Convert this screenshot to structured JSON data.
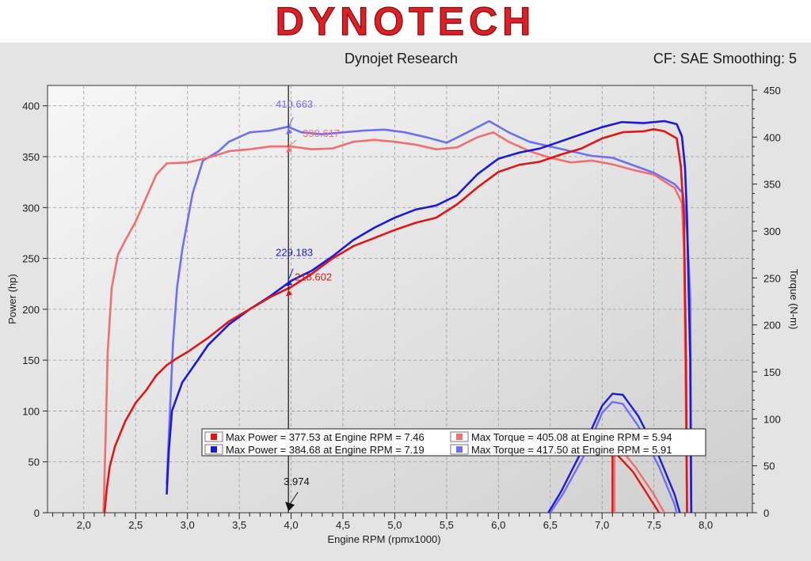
{
  "brand": {
    "logo_text": "DYNOTECH"
  },
  "header": {
    "title": "Dynojet Research",
    "correction": "CF: SAE Smoothing: 5"
  },
  "chart_data": {
    "type": "line",
    "xlabel": "Engine RPM (rpmx1000)",
    "ylabel_left": "Power (hp)",
    "ylabel_right": "Torque (N-m)",
    "xlim": [
      1.65,
      8.45
    ],
    "ylim_left": [
      0,
      420
    ],
    "ylim_right": [
      0,
      455
    ],
    "x_ticks": [
      2.0,
      2.5,
      3.0,
      3.5,
      4.0,
      4.5,
      5.0,
      5.5,
      6.0,
      6.5,
      7.0,
      7.5,
      8.0
    ],
    "x_tick_labels": [
      "2,0",
      "2,5",
      "3,0",
      "3,5",
      "4,0",
      "4,5",
      "5,0",
      "5,5",
      "6,0",
      "6,5",
      "7,0",
      "7,5",
      "8,0"
    ],
    "y_left_ticks": [
      0,
      50,
      100,
      150,
      200,
      250,
      300,
      350,
      400
    ],
    "y_right_ticks": [
      0,
      50,
      100,
      150,
      200,
      250,
      300,
      350,
      400,
      450
    ],
    "grid": true,
    "cursor": {
      "rpm": 3.974,
      "label": "3.974"
    },
    "colors": {
      "red_power": "#e01616",
      "red_torque": "#f07070",
      "blue_power": "#1a1add",
      "blue_torque": "#6f6ff2"
    },
    "series": [
      {
        "axis": "left",
        "color_key": "red_power",
        "points": [
          [
            2.2,
            0
          ],
          [
            2.22,
            22
          ],
          [
            2.25,
            45
          ],
          [
            2.3,
            65
          ],
          [
            2.4,
            90
          ],
          [
            2.5,
            108
          ],
          [
            2.6,
            120
          ],
          [
            2.7,
            135
          ],
          [
            2.8,
            145
          ],
          [
            2.9,
            152
          ],
          [
            3.0,
            158
          ],
          [
            3.2,
            172
          ],
          [
            3.4,
            188
          ],
          [
            3.6,
            200
          ],
          [
            3.8,
            212
          ],
          [
            4.0,
            222
          ],
          [
            4.2,
            235
          ],
          [
            4.4,
            250
          ],
          [
            4.6,
            262
          ],
          [
            4.8,
            270
          ],
          [
            5.0,
            278
          ],
          [
            5.2,
            285
          ],
          [
            5.4,
            290
          ],
          [
            5.6,
            303
          ],
          [
            5.8,
            320
          ],
          [
            6.0,
            335
          ],
          [
            6.2,
            342
          ],
          [
            6.4,
            345
          ],
          [
            6.6,
            352
          ],
          [
            6.8,
            358
          ],
          [
            7.0,
            368
          ],
          [
            7.2,
            374
          ],
          [
            7.4,
            375
          ],
          [
            7.5,
            377
          ],
          [
            7.6,
            375
          ],
          [
            7.72,
            368
          ],
          [
            7.76,
            340
          ],
          [
            7.79,
            290
          ],
          [
            7.81,
            150
          ],
          [
            7.82,
            0
          ]
        ]
      },
      {
        "axis": "right",
        "color_key": "red_torque",
        "points": [
          [
            2.19,
            0
          ],
          [
            2.21,
            80
          ],
          [
            2.23,
            170
          ],
          [
            2.27,
            240
          ],
          [
            2.33,
            275
          ],
          [
            2.4,
            290
          ],
          [
            2.5,
            310
          ],
          [
            2.6,
            335
          ],
          [
            2.7,
            360
          ],
          [
            2.8,
            372
          ],
          [
            3.0,
            373
          ],
          [
            3.2,
            378
          ],
          [
            3.4,
            385
          ],
          [
            3.6,
            387
          ],
          [
            3.8,
            390
          ],
          [
            4.0,
            390
          ],
          [
            4.2,
            387
          ],
          [
            4.4,
            388
          ],
          [
            4.6,
            395
          ],
          [
            4.8,
            397
          ],
          [
            5.0,
            395
          ],
          [
            5.2,
            392
          ],
          [
            5.4,
            387
          ],
          [
            5.6,
            389
          ],
          [
            5.8,
            400
          ],
          [
            5.95,
            405
          ],
          [
            6.1,
            395
          ],
          [
            6.3,
            385
          ],
          [
            6.5,
            378
          ],
          [
            6.7,
            373
          ],
          [
            6.9,
            375
          ],
          [
            7.1,
            371
          ],
          [
            7.3,
            365
          ],
          [
            7.5,
            360
          ],
          [
            7.6,
            353
          ],
          [
            7.7,
            346
          ],
          [
            7.77,
            330
          ],
          [
            7.79,
            280
          ],
          [
            7.82,
            0
          ]
        ]
      },
      {
        "axis": "left",
        "color_key": "blue_power",
        "points": [
          [
            2.8,
            18
          ],
          [
            2.82,
            60
          ],
          [
            2.85,
            100
          ],
          [
            2.95,
            128
          ],
          [
            3.1,
            150
          ],
          [
            3.2,
            165
          ],
          [
            3.4,
            185
          ],
          [
            3.6,
            200
          ],
          [
            3.8,
            213
          ],
          [
            4.0,
            228
          ],
          [
            4.2,
            238
          ],
          [
            4.4,
            252
          ],
          [
            4.6,
            268
          ],
          [
            4.8,
            280
          ],
          [
            5.0,
            290
          ],
          [
            5.2,
            298
          ],
          [
            5.4,
            302
          ],
          [
            5.6,
            312
          ],
          [
            5.8,
            333
          ],
          [
            6.0,
            348
          ],
          [
            6.2,
            354
          ],
          [
            6.4,
            358
          ],
          [
            6.6,
            365
          ],
          [
            6.8,
            372
          ],
          [
            7.0,
            379
          ],
          [
            7.19,
            384
          ],
          [
            7.4,
            383
          ],
          [
            7.6,
            385
          ],
          [
            7.72,
            382
          ],
          [
            7.77,
            370
          ],
          [
            7.8,
            340
          ],
          [
            7.82,
            290
          ],
          [
            7.85,
            150
          ],
          [
            7.86,
            0
          ]
        ]
      },
      {
        "axis": "right",
        "color_key": "blue_torque",
        "points": [
          [
            2.8,
            30
          ],
          [
            2.82,
            80
          ],
          [
            2.86,
            180
          ],
          [
            2.9,
            240
          ],
          [
            2.95,
            280
          ],
          [
            3.05,
            340
          ],
          [
            3.15,
            375
          ],
          [
            3.3,
            385
          ],
          [
            3.4,
            395
          ],
          [
            3.6,
            405
          ],
          [
            3.8,
            407
          ],
          [
            3.97,
            411
          ],
          [
            4.1,
            405
          ],
          [
            4.3,
            403
          ],
          [
            4.5,
            405
          ],
          [
            4.7,
            407
          ],
          [
            4.9,
            408
          ],
          [
            5.1,
            405
          ],
          [
            5.3,
            400
          ],
          [
            5.5,
            394
          ],
          [
            5.7,
            405
          ],
          [
            5.91,
            417
          ],
          [
            6.1,
            405
          ],
          [
            6.3,
            395
          ],
          [
            6.5,
            390
          ],
          [
            6.7,
            385
          ],
          [
            6.9,
            380
          ],
          [
            7.1,
            378
          ],
          [
            7.3,
            370
          ],
          [
            7.5,
            362
          ],
          [
            7.6,
            356
          ],
          [
            7.7,
            350
          ],
          [
            7.78,
            340
          ],
          [
            7.82,
            300
          ],
          [
            7.85,
            230
          ],
          [
            7.86,
            0
          ]
        ]
      }
    ],
    "dips": [
      {
        "color_key": "blue_power",
        "points": [
          [
            6.48,
            0
          ],
          [
            6.6,
            20
          ],
          [
            6.8,
            60
          ],
          [
            7.0,
            105
          ],
          [
            7.1,
            117
          ],
          [
            7.2,
            116
          ],
          [
            7.35,
            95
          ],
          [
            7.55,
            55
          ],
          [
            7.7,
            18
          ],
          [
            7.75,
            0
          ]
        ]
      },
      {
        "color_key": "blue_torque",
        "points": [
          [
            6.5,
            0
          ],
          [
            6.62,
            18
          ],
          [
            6.82,
            55
          ],
          [
            7.0,
            98
          ],
          [
            7.1,
            109
          ],
          [
            7.2,
            107
          ],
          [
            7.35,
            85
          ],
          [
            7.55,
            45
          ],
          [
            7.7,
            8
          ],
          [
            7.72,
            0
          ]
        ]
      },
      {
        "color_key": "red_power",
        "points": [
          [
            7.1,
            0
          ],
          [
            7.1,
            62
          ],
          [
            7.3,
            40
          ],
          [
            7.5,
            8
          ],
          [
            7.55,
            0
          ]
        ]
      },
      {
        "color_key": "red_torque",
        "points": [
          [
            7.12,
            0
          ],
          [
            7.12,
            70
          ],
          [
            7.32,
            45
          ],
          [
            7.5,
            18
          ],
          [
            7.6,
            0
          ]
        ]
      }
    ],
    "annotations": [
      {
        "text": "410.663",
        "color_key": "blue_torque",
        "x": 3.974,
        "y_hp": 378
      },
      {
        "text": "390.617",
        "color_key": "red_torque",
        "x": 3.974,
        "y_hp": 360
      },
      {
        "text": "229.183",
        "color_key": "blue_power",
        "x": 3.974,
        "y_hp": 229
      },
      {
        "text": "218.602",
        "color_key": "red_power",
        "x": 3.974,
        "y_hp": 219
      }
    ],
    "legend": {
      "placement": "bottom-center",
      "entries": [
        {
          "text": "Max Power = 377.53 at Engine RPM = 7.46",
          "color_key": "red_power"
        },
        {
          "text": "Max Torque = 405.08 at Engine RPM = 5.94",
          "color_key": "red_torque"
        },
        {
          "text": "Max Power = 384.68 at Engine RPM = 7.19",
          "color_key": "blue_power"
        },
        {
          "text": "Max Torque = 417.50 at Engine RPM = 5.91",
          "color_key": "blue_torque"
        }
      ]
    }
  }
}
